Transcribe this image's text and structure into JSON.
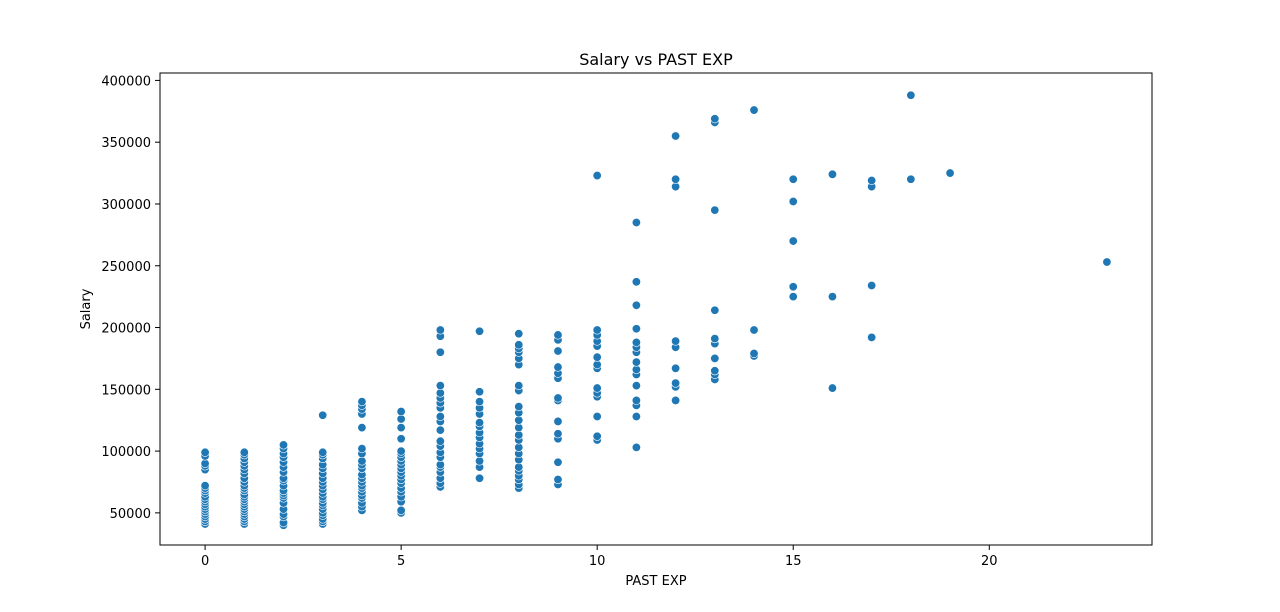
{
  "chart_data": {
    "type": "scatter",
    "title": "Salary vs PAST EXP",
    "xlabel": "PAST EXP",
    "ylabel": "Salary",
    "xlim": [
      -1.15,
      24.15
    ],
    "ylim": [
      24000,
      406000
    ],
    "xticks": [
      0,
      5,
      10,
      15,
      20
    ],
    "yticks": [
      50000,
      100000,
      150000,
      200000,
      250000,
      300000,
      350000,
      400000
    ],
    "grid": false,
    "marker_color": "#1f77b4",
    "marker_edge": "#ffffff",
    "points": [
      [
        0,
        41000
      ],
      [
        0,
        43000
      ],
      [
        0,
        45000
      ],
      [
        0,
        47000
      ],
      [
        0,
        49000
      ],
      [
        0,
        51000
      ],
      [
        0,
        53000
      ],
      [
        0,
        55000
      ],
      [
        0,
        57000
      ],
      [
        0,
        59000
      ],
      [
        0,
        61000
      ],
      [
        0,
        63000
      ],
      [
        0,
        66000
      ],
      [
        0,
        68000
      ],
      [
        0,
        70000
      ],
      [
        0,
        72000
      ],
      [
        0,
        85000
      ],
      [
        0,
        88000
      ],
      [
        0,
        90000
      ],
      [
        0,
        96000
      ],
      [
        0,
        99000
      ],
      [
        1,
        41000
      ],
      [
        1,
        43000
      ],
      [
        1,
        45000
      ],
      [
        1,
        47000
      ],
      [
        1,
        49000
      ],
      [
        1,
        51000
      ],
      [
        1,
        53000
      ],
      [
        1,
        55000
      ],
      [
        1,
        57000
      ],
      [
        1,
        59000
      ],
      [
        1,
        61000
      ],
      [
        1,
        63000
      ],
      [
        1,
        65000
      ],
      [
        1,
        68000
      ],
      [
        1,
        70000
      ],
      [
        1,
        72000
      ],
      [
        1,
        75000
      ],
      [
        1,
        78000
      ],
      [
        1,
        82000
      ],
      [
        1,
        85000
      ],
      [
        1,
        88000
      ],
      [
        1,
        91000
      ],
      [
        1,
        94000
      ],
      [
        1,
        97000
      ],
      [
        1,
        99000
      ],
      [
        2,
        40000
      ],
      [
        2,
        42000
      ],
      [
        2,
        47000
      ],
      [
        2,
        49000
      ],
      [
        2,
        53000
      ],
      [
        2,
        58000
      ],
      [
        2,
        62000
      ],
      [
        2,
        64000
      ],
      [
        2,
        66000
      ],
      [
        2,
        68000
      ],
      [
        2,
        72000
      ],
      [
        2,
        76000
      ],
      [
        2,
        78000
      ],
      [
        2,
        83000
      ],
      [
        2,
        87000
      ],
      [
        2,
        91000
      ],
      [
        2,
        95000
      ],
      [
        2,
        98000
      ],
      [
        2,
        102000
      ],
      [
        2,
        105000
      ],
      [
        3,
        41000
      ],
      [
        3,
        43000
      ],
      [
        3,
        45000
      ],
      [
        3,
        48000
      ],
      [
        3,
        50000
      ],
      [
        3,
        53000
      ],
      [
        3,
        56000
      ],
      [
        3,
        58000
      ],
      [
        3,
        61000
      ],
      [
        3,
        63000
      ],
      [
        3,
        66000
      ],
      [
        3,
        69000
      ],
      [
        3,
        72000
      ],
      [
        3,
        75000
      ],
      [
        3,
        78000
      ],
      [
        3,
        82000
      ],
      [
        3,
        86000
      ],
      [
        3,
        89000
      ],
      [
        3,
        94000
      ],
      [
        3,
        97000
      ],
      [
        3,
        99000
      ],
      [
        3,
        129000
      ],
      [
        4,
        52000
      ],
      [
        4,
        55000
      ],
      [
        4,
        58000
      ],
      [
        4,
        62000
      ],
      [
        4,
        64000
      ],
      [
        4,
        67000
      ],
      [
        4,
        70000
      ],
      [
        4,
        72000
      ],
      [
        4,
        75000
      ],
      [
        4,
        78000
      ],
      [
        4,
        81000
      ],
      [
        4,
        86000
      ],
      [
        4,
        89000
      ],
      [
        4,
        92000
      ],
      [
        4,
        98000
      ],
      [
        4,
        102000
      ],
      [
        4,
        119000
      ],
      [
        4,
        130000
      ],
      [
        4,
        134000
      ],
      [
        4,
        137000
      ],
      [
        4,
        140000
      ],
      [
        5,
        50000
      ],
      [
        5,
        52000
      ],
      [
        5,
        59000
      ],
      [
        5,
        63000
      ],
      [
        5,
        67000
      ],
      [
        5,
        70000
      ],
      [
        5,
        74000
      ],
      [
        5,
        77000
      ],
      [
        5,
        80000
      ],
      [
        5,
        83000
      ],
      [
        5,
        86000
      ],
      [
        5,
        89000
      ],
      [
        5,
        92000
      ],
      [
        5,
        95000
      ],
      [
        5,
        98000
      ],
      [
        5,
        100000
      ],
      [
        5,
        110000
      ],
      [
        5,
        119000
      ],
      [
        5,
        126000
      ],
      [
        5,
        132000
      ],
      [
        6,
        71000
      ],
      [
        6,
        74000
      ],
      [
        6,
        78000
      ],
      [
        6,
        83000
      ],
      [
        6,
        87000
      ],
      [
        6,
        89000
      ],
      [
        6,
        95000
      ],
      [
        6,
        99000
      ],
      [
        6,
        104000
      ],
      [
        6,
        108000
      ],
      [
        6,
        117000
      ],
      [
        6,
        124000
      ],
      [
        6,
        128000
      ],
      [
        6,
        135000
      ],
      [
        6,
        139000
      ],
      [
        6,
        143000
      ],
      [
        6,
        147000
      ],
      [
        6,
        153000
      ],
      [
        6,
        180000
      ],
      [
        6,
        193000
      ],
      [
        6,
        198000
      ],
      [
        7,
        78000
      ],
      [
        7,
        87000
      ],
      [
        7,
        92000
      ],
      [
        7,
        98000
      ],
      [
        7,
        102000
      ],
      [
        7,
        106000
      ],
      [
        7,
        111000
      ],
      [
        7,
        115000
      ],
      [
        7,
        120000
      ],
      [
        7,
        123000
      ],
      [
        7,
        130000
      ],
      [
        7,
        135000
      ],
      [
        7,
        140000
      ],
      [
        7,
        148000
      ],
      [
        7,
        197000
      ],
      [
        8,
        70000
      ],
      [
        8,
        73000
      ],
      [
        8,
        77000
      ],
      [
        8,
        80000
      ],
      [
        8,
        84000
      ],
      [
        8,
        87000
      ],
      [
        8,
        93000
      ],
      [
        8,
        98000
      ],
      [
        8,
        103000
      ],
      [
        8,
        109000
      ],
      [
        8,
        113000
      ],
      [
        8,
        119000
      ],
      [
        8,
        125000
      ],
      [
        8,
        131000
      ],
      [
        8,
        136000
      ],
      [
        8,
        149000
      ],
      [
        8,
        153000
      ],
      [
        8,
        170000
      ],
      [
        8,
        175000
      ],
      [
        8,
        180000
      ],
      [
        8,
        183000
      ],
      [
        8,
        186000
      ],
      [
        8,
        195000
      ],
      [
        9,
        73000
      ],
      [
        9,
        77000
      ],
      [
        9,
        91000
      ],
      [
        9,
        110000
      ],
      [
        9,
        114000
      ],
      [
        9,
        124000
      ],
      [
        9,
        141000
      ],
      [
        9,
        143000
      ],
      [
        9,
        159000
      ],
      [
        9,
        163000
      ],
      [
        9,
        168000
      ],
      [
        9,
        181000
      ],
      [
        9,
        190000
      ],
      [
        9,
        194000
      ],
      [
        10,
        109000
      ],
      [
        10,
        112000
      ],
      [
        10,
        128000
      ],
      [
        10,
        144000
      ],
      [
        10,
        147000
      ],
      [
        10,
        151000
      ],
      [
        10,
        167000
      ],
      [
        10,
        170000
      ],
      [
        10,
        176000
      ],
      [
        10,
        185000
      ],
      [
        10,
        189000
      ],
      [
        10,
        194000
      ],
      [
        10,
        198000
      ],
      [
        10,
        323000
      ],
      [
        11,
        103000
      ],
      [
        11,
        128000
      ],
      [
        11,
        137000
      ],
      [
        11,
        141000
      ],
      [
        11,
        153000
      ],
      [
        11,
        162000
      ],
      [
        11,
        166000
      ],
      [
        11,
        172000
      ],
      [
        11,
        180000
      ],
      [
        11,
        184000
      ],
      [
        11,
        188000
      ],
      [
        11,
        199000
      ],
      [
        11,
        218000
      ],
      [
        11,
        237000
      ],
      [
        11,
        285000
      ],
      [
        12,
        141000
      ],
      [
        12,
        152000
      ],
      [
        12,
        155000
      ],
      [
        12,
        167000
      ],
      [
        12,
        184000
      ],
      [
        12,
        189000
      ],
      [
        12,
        314000
      ],
      [
        12,
        320000
      ],
      [
        12,
        355000
      ],
      [
        13,
        158000
      ],
      [
        13,
        162000
      ],
      [
        13,
        165000
      ],
      [
        13,
        175000
      ],
      [
        13,
        187000
      ],
      [
        13,
        191000
      ],
      [
        13,
        214000
      ],
      [
        13,
        295000
      ],
      [
        13,
        366000
      ],
      [
        13,
        369000
      ],
      [
        14,
        177000
      ],
      [
        14,
        179000
      ],
      [
        14,
        198000
      ],
      [
        14,
        376000
      ],
      [
        15,
        225000
      ],
      [
        15,
        233000
      ],
      [
        15,
        270000
      ],
      [
        15,
        302000
      ],
      [
        15,
        320000
      ],
      [
        16,
        151000
      ],
      [
        16,
        225000
      ],
      [
        16,
        324000
      ],
      [
        17,
        192000
      ],
      [
        17,
        234000
      ],
      [
        17,
        314000
      ],
      [
        17,
        319000
      ],
      [
        18,
        320000
      ],
      [
        18,
        388000
      ],
      [
        19,
        325000
      ],
      [
        23,
        253000
      ]
    ]
  }
}
